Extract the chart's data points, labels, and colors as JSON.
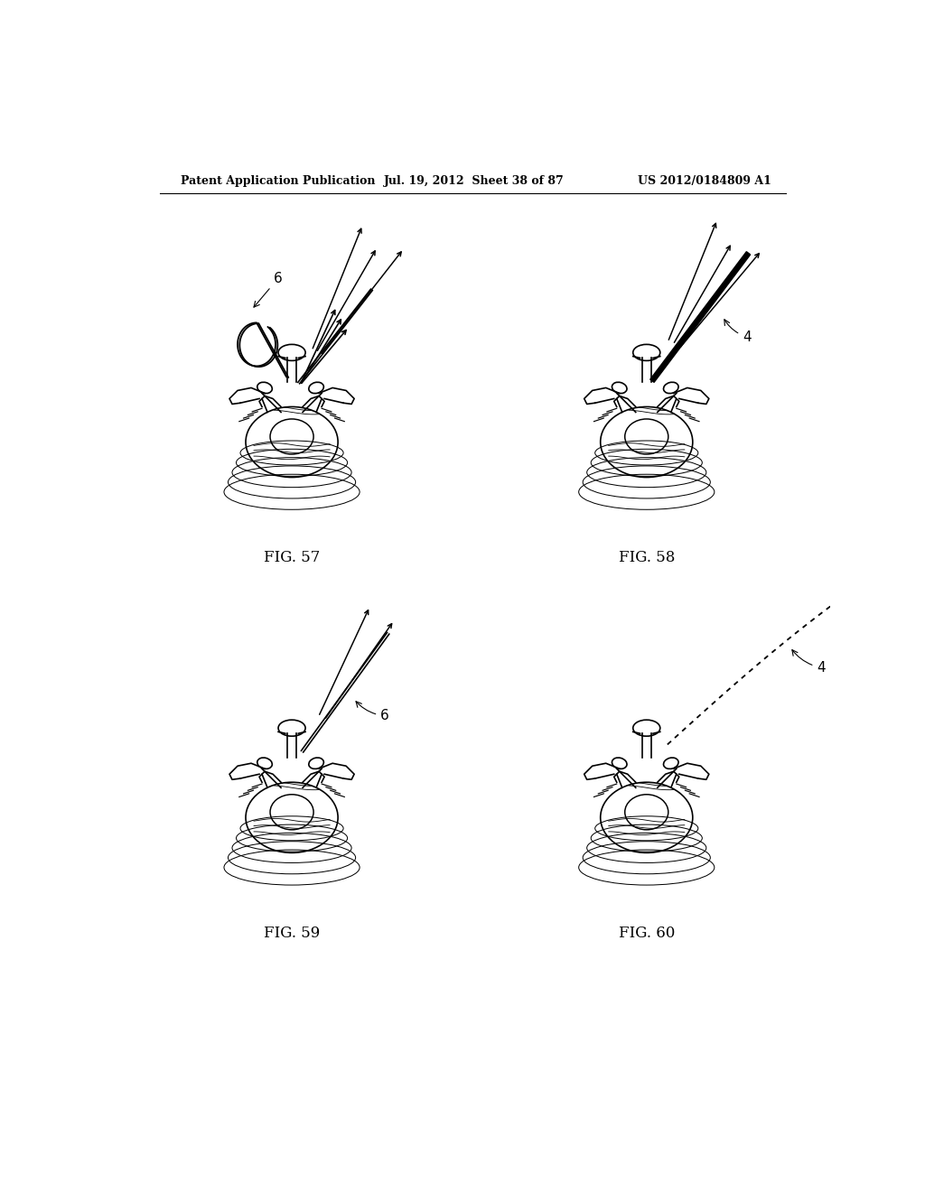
{
  "bg_color": "#ffffff",
  "text_color": "#000000",
  "header_left": "Patent Application Publication",
  "header_mid": "Jul. 19, 2012  Sheet 38 of 87",
  "header_right": "US 2012/0184809 A1",
  "fig_labels": [
    "FIG. 57",
    "FIG. 58",
    "FIG. 59",
    "FIG. 60"
  ],
  "line_color": "#000000",
  "line_width": 1.2
}
